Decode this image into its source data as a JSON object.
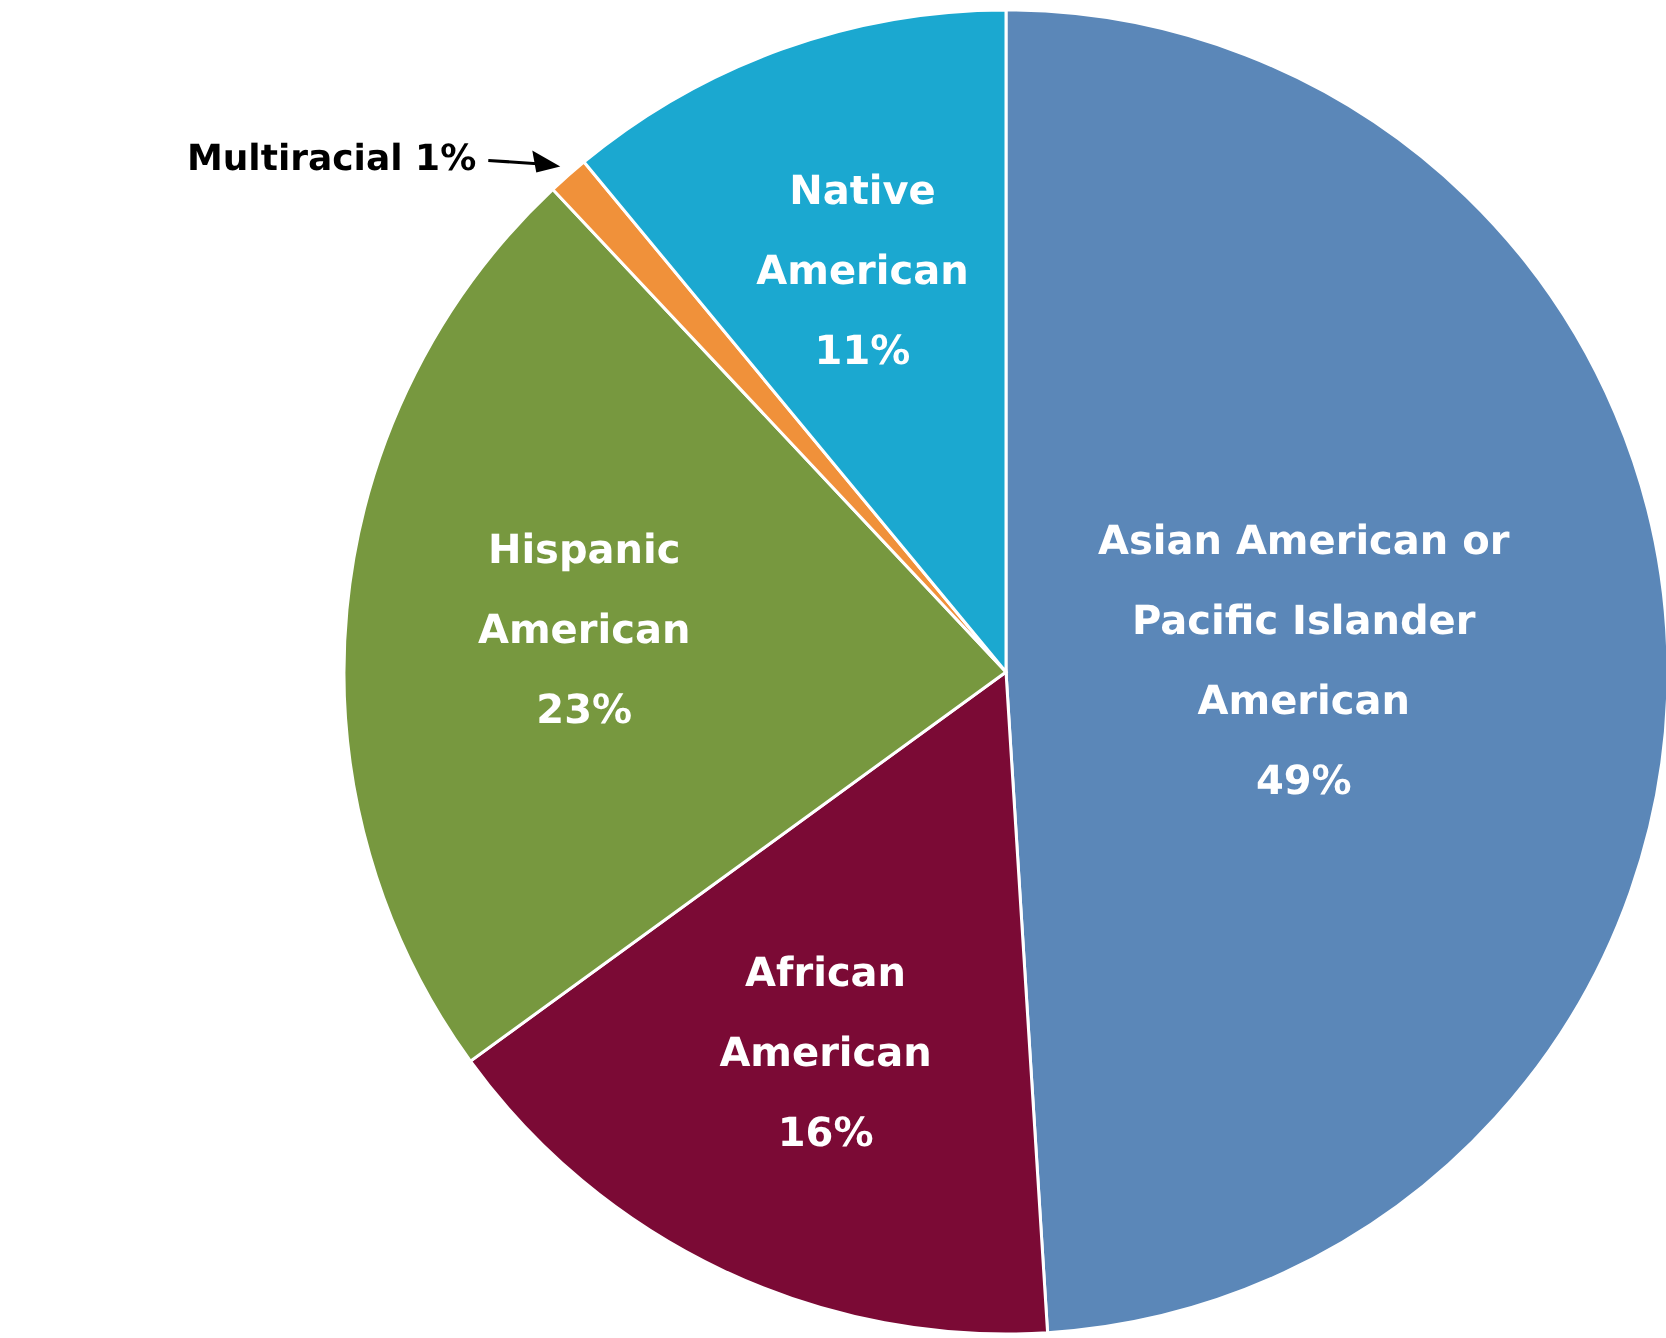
{
  "chart_data": {
    "type": "pie",
    "categories": [
      "Asian American or Pacific Islander American",
      "African American",
      "Hispanic American",
      "Multiracial",
      "Native American"
    ],
    "values": [
      49,
      16,
      23,
      1,
      11
    ],
    "colors": [
      "#5b87b8",
      "#7b0a35",
      "#77983f",
      "#f0913a",
      "#1ba8d0"
    ],
    "value_labels": [
      "49%",
      "16%",
      "23%",
      "1%",
      "11%"
    ]
  }
}
